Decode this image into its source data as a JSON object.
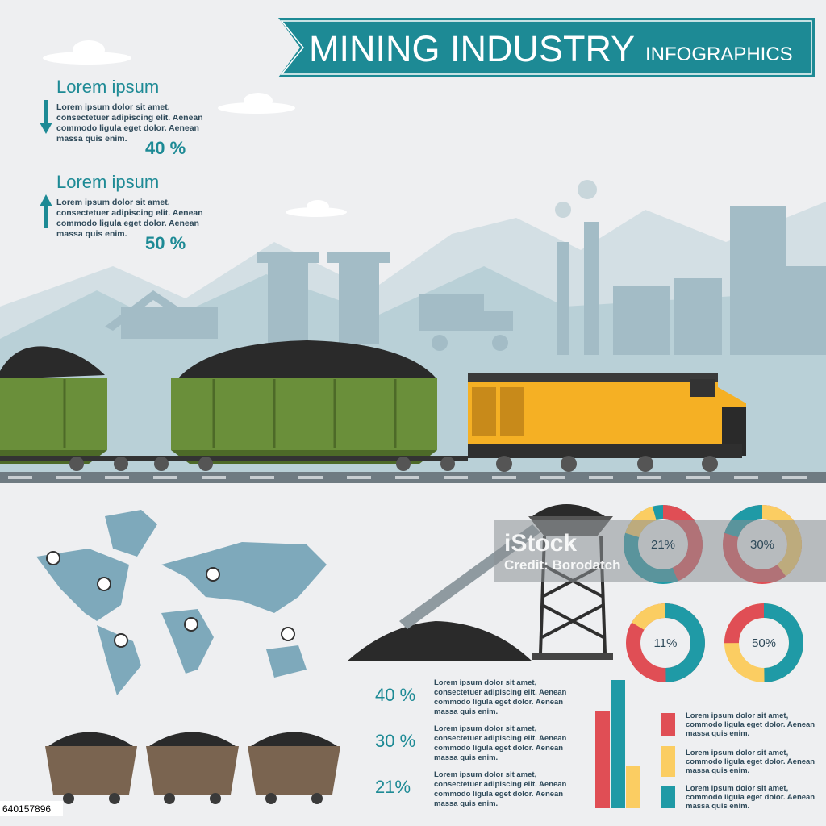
{
  "header": {
    "title": "MINING INDUSTRY",
    "subtitle": "INFOGRAPHICS"
  },
  "stats": [
    {
      "title": "Lorem ipsum",
      "lines": [
        "Lorem ipsum dolor sit amet,",
        "consectetuer adipiscing elit. Aenean",
        "commodo ligula eget dolor. Aenean",
        "massa quis enim."
      ],
      "percent": "40 %"
    },
    {
      "title": "Lorem ipsum",
      "lines": [
        "Lorem ipsum dolor sit amet,",
        "consectetuer adipiscing elit. Aenean",
        "commodo ligula eget dolor. Aenean",
        "massa quis enim."
      ],
      "percent": "50 %"
    }
  ],
  "donuts": [
    "21%",
    "30%",
    "11%",
    "50%"
  ],
  "notes": [
    {
      "percent": "40 %",
      "lines": [
        "Lorem ipsum dolor sit amet,",
        "consectetuer adipiscing elit. Aenean",
        "commodo ligula eget dolor. Aenean",
        "massa quis enim."
      ]
    },
    {
      "percent": "30 %",
      "lines": [
        "Lorem ipsum dolor sit amet,",
        "consectetuer adipiscing elit. Aenean",
        "commodo ligula eget dolor. Aenean",
        "massa quis enim."
      ]
    },
    {
      "percent": "21%",
      "lines": [
        "Lorem ipsum dolor sit amet,",
        "consectetuer adipiscing elit. Aenean",
        "commodo ligula eget dolor. Aenean",
        "massa quis enim."
      ]
    }
  ],
  "legend": [
    {
      "lines": [
        "Lorem ipsum dolor sit amet,",
        "commodo ligula eget dolor. Aenean",
        "massa quis enim."
      ]
    },
    {
      "lines": [
        "Lorem ipsum dolor sit amet,",
        "commodo ligula eget dolor. Aenean",
        "massa quis enim."
      ]
    },
    {
      "lines": [
        "Lorem ipsum dolor sit amet,",
        "commodo ligula eget dolor. Aenean",
        "massa quis enim."
      ]
    }
  ],
  "watermark": {
    "brand": "iStock",
    "credit": "Credit: Borodatch"
  },
  "image_id": "640157896"
}
